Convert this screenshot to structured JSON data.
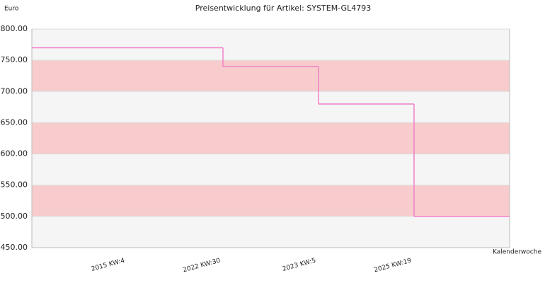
{
  "chart_data": {
    "type": "step",
    "title": "Preisentwicklung für Artikel: SYSTEM-GL4793",
    "y_label": "Euro",
    "x_label": "Kalenderwoche",
    "categories": [
      "2015 KW:4",
      "2022 KW:30",
      "2023 KW:5",
      "2025 KW:19"
    ],
    "series": [
      {
        "name": "Preis",
        "color": "#f080c8",
        "values": [
          1770,
          1740,
          1680,
          1500
        ]
      }
    ],
    "ylim": [
      1450,
      1800
    ],
    "yticks": [
      {
        "value": 1450,
        "label": "1450.00"
      },
      {
        "value": 1500,
        "label": "1500.00"
      },
      {
        "value": 1550,
        "label": "1550.00"
      },
      {
        "value": 1600,
        "label": "1600.00"
      },
      {
        "value": 1650,
        "label": "1650.00"
      },
      {
        "value": 1700,
        "label": "1700.00"
      },
      {
        "value": 1750,
        "label": "1750.00"
      },
      {
        "value": 1800,
        "label": "1800.00"
      }
    ],
    "band_colors": [
      "#f5f5f5",
      "#f8cccc"
    ]
  }
}
